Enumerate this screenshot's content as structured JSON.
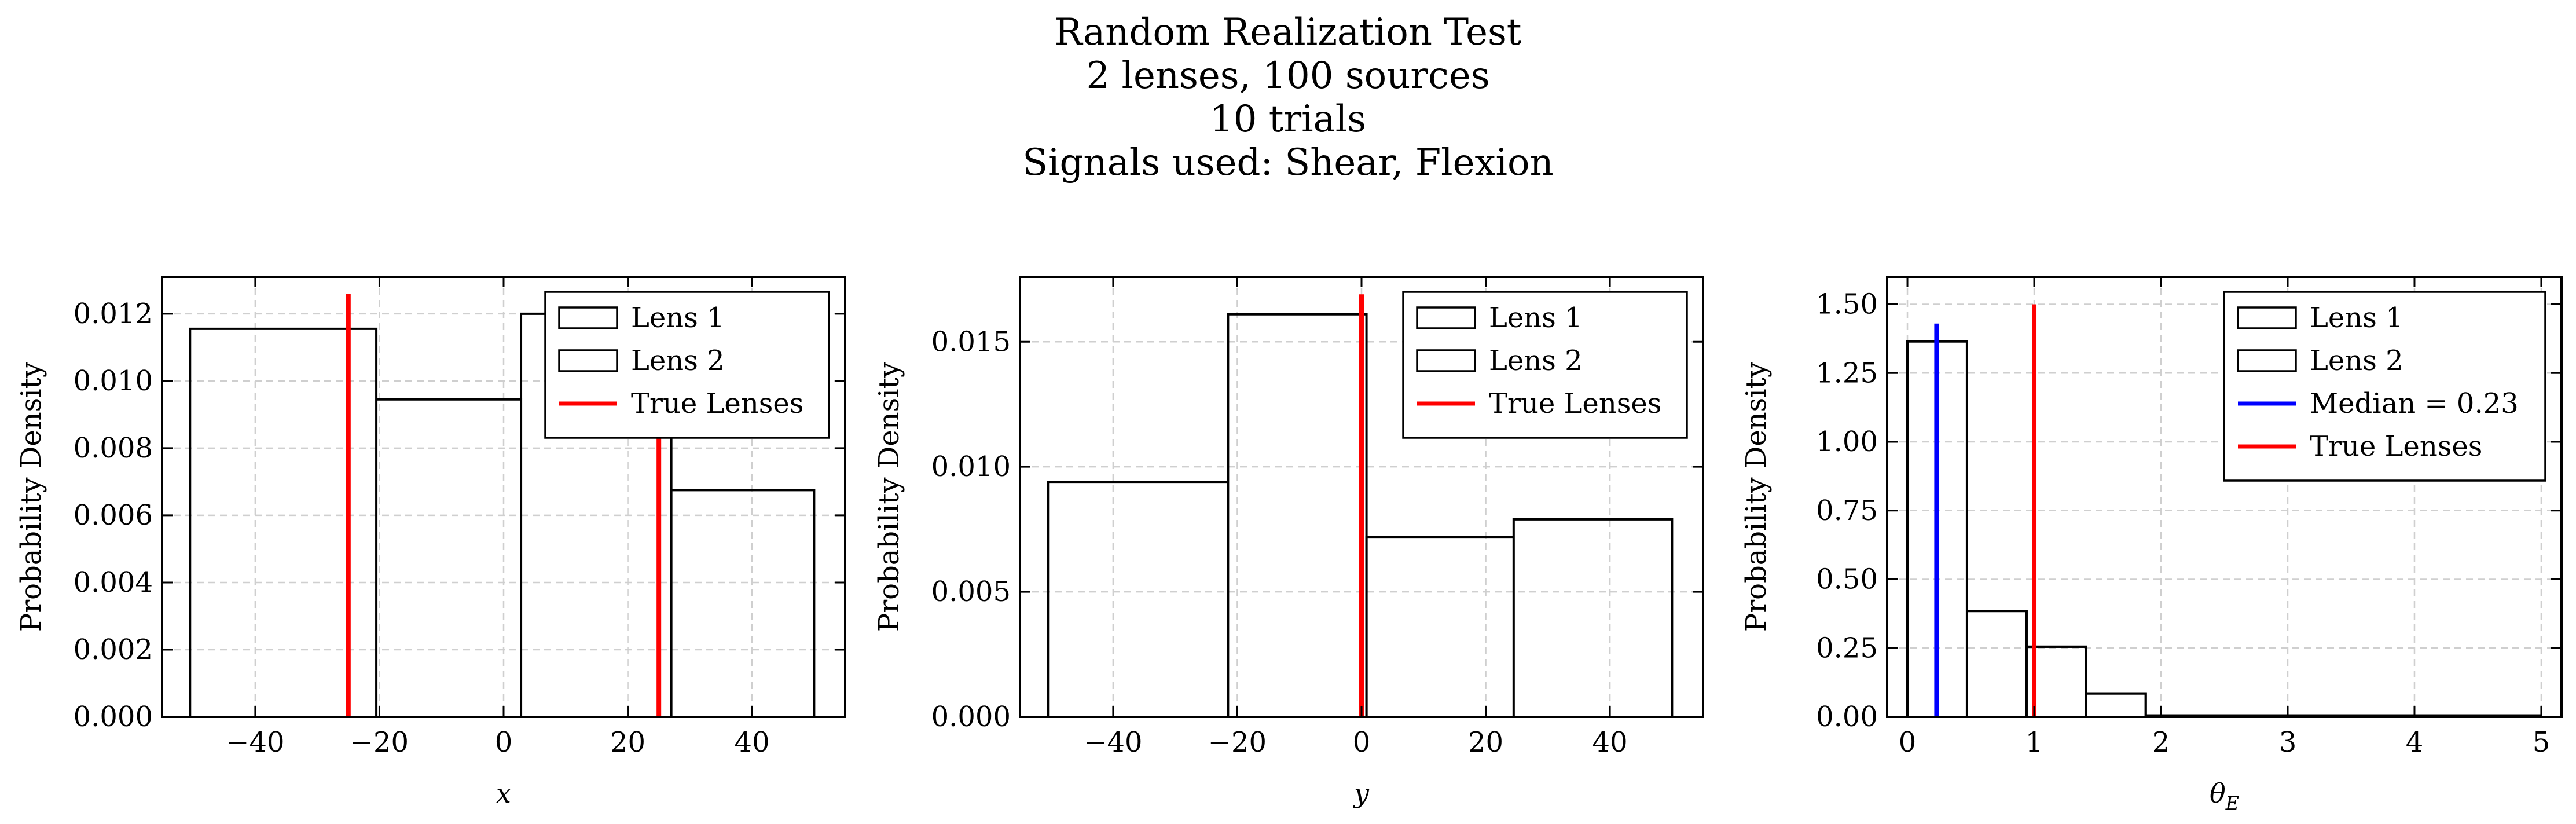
{
  "figure": {
    "title_lines": [
      "Random Realization Test",
      "2 lenses, 100 sources",
      "10 trials",
      "Signals used: Shear, Flexion"
    ]
  },
  "chart_data": [
    {
      "type": "histogram",
      "xlabel": "x",
      "ylabel": "Probability Density",
      "xlim": [
        -55,
        55
      ],
      "ylim": [
        0,
        0.0131
      ],
      "xticks": [
        -40,
        -20,
        0,
        20,
        40
      ],
      "xtick_labels": [
        "−40",
        "−20",
        "0",
        "20",
        "40"
      ],
      "yticks": [
        0,
        0.002,
        0.004,
        0.006,
        0.008,
        0.01,
        0.012
      ],
      "ytick_labels": [
        "0.000",
        "0.002",
        "0.004",
        "0.006",
        "0.008",
        "0.010",
        "0.012"
      ],
      "grid": true,
      "legend_position": "upper right",
      "series": [
        {
          "name": "Lens 1",
          "type": "step",
          "color": "#000000",
          "bins": [
            -50.5,
            -20.5,
            2.8,
            27.0,
            50.0
          ],
          "values": [
            0.01155,
            0.00945,
            0.0,
            0.0
          ]
        },
        {
          "name": "Lens 2",
          "type": "step",
          "color": "#000000",
          "bins": [
            -50.5,
            -20.5,
            2.8,
            27.0,
            50.0
          ],
          "values": [
            0.0,
            0.0,
            0.012,
            0.00675
          ]
        },
        {
          "name": "True Lenses",
          "type": "vline",
          "color": "#ff0000",
          "x": [
            -25,
            25
          ],
          "ymax": 0.0126
        }
      ]
    },
    {
      "type": "histogram",
      "xlabel": "y",
      "ylabel": "Probability Density",
      "xlim": [
        -55,
        55
      ],
      "ylim": [
        0,
        0.0176
      ],
      "xticks": [
        -40,
        -20,
        0,
        20,
        40
      ],
      "xtick_labels": [
        "−40",
        "−20",
        "0",
        "20",
        "40"
      ],
      "yticks": [
        0,
        0.005,
        0.01,
        0.015
      ],
      "ytick_labels": [
        "0.000",
        "0.005",
        "0.010",
        "0.015"
      ],
      "grid": true,
      "legend_position": "upper right",
      "series": [
        {
          "name": "Lens 1",
          "type": "step",
          "color": "#000000",
          "bins": [
            -50.5,
            -21.5,
            0.8,
            24.5,
            50.0
          ],
          "values": [
            0.0094,
            0.0161,
            0.0,
            0.0
          ]
        },
        {
          "name": "Lens 2",
          "type": "step",
          "color": "#000000",
          "bins": [
            -50.5,
            -21.5,
            0.8,
            24.5,
            50.0
          ],
          "values": [
            0.0,
            0.0,
            0.0072,
            0.0079
          ]
        },
        {
          "name": "True Lenses",
          "type": "vline",
          "color": "#ff0000",
          "x": [
            0
          ],
          "ymax": 0.0169
        }
      ]
    },
    {
      "type": "histogram",
      "xlabel": "θ",
      "xlabel_sub": "E",
      "ylabel": "Probability Density",
      "xlim": [
        -0.16,
        5.16
      ],
      "ylim": [
        0,
        1.6
      ],
      "xticks": [
        0,
        1,
        2,
        3,
        4,
        5
      ],
      "xtick_labels": [
        "0",
        "1",
        "2",
        "3",
        "4",
        "5"
      ],
      "yticks": [
        0,
        0.25,
        0.5,
        0.75,
        1.0,
        1.25,
        1.5
      ],
      "ytick_labels": [
        "0.00",
        "0.25",
        "0.50",
        "0.75",
        "1.00",
        "1.25",
        "1.50"
      ],
      "grid": true,
      "legend_position": "upper right",
      "series": [
        {
          "name": "Lens 1",
          "type": "step",
          "color": "#000000",
          "bins": [
            0.0,
            0.47,
            0.94,
            1.41,
            1.88,
            5.0
          ],
          "values": [
            1.365,
            0.385,
            0.255,
            0.085,
            0.005
          ]
        },
        {
          "name": "Lens 2",
          "type": "step",
          "color": "#000000",
          "bins": [
            0.0,
            0.47,
            0.94,
            1.41,
            1.88,
            5.0
          ],
          "values": [
            1.365,
            0.385,
            0.255,
            0.085,
            0.005
          ]
        },
        {
          "name": "Median = 0.23",
          "type": "vline",
          "color": "#0000ff",
          "x": [
            0.23
          ],
          "ymax": 1.43
        },
        {
          "name": "True Lenses",
          "type": "vline",
          "color": "#ff0000",
          "x": [
            1.0
          ],
          "ymax": 1.5
        }
      ]
    }
  ]
}
